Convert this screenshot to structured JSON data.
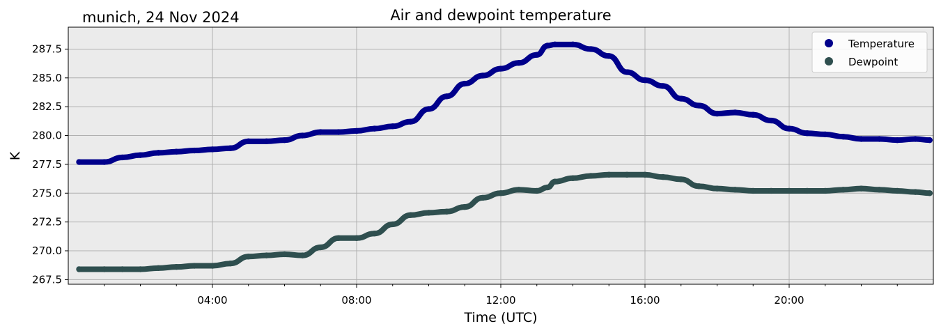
{
  "location_label": "munich, 24 Nov 2024",
  "chart_data": {
    "type": "scatter",
    "title": "Air and dewpoint temperature",
    "xlabel": "Time (UTC)",
    "ylabel": "K",
    "xlim": [
      "00:00",
      "24:00"
    ],
    "ylim": [
      267.1,
      289.4
    ],
    "x_ticks": [
      "04:00",
      "08:00",
      "12:00",
      "16:00",
      "20:00"
    ],
    "y_ticks": [
      "267.5",
      "270.0",
      "272.5",
      "275.0",
      "277.5",
      "280.0",
      "282.5",
      "285.0",
      "287.5"
    ],
    "grid": true,
    "legend_position": "top-right",
    "background_color": "#ebebeb",
    "series": [
      {
        "name": "Temperature",
        "color": "#00008b",
        "raw_color": "#7fa7a0",
        "x_hours": [
          0.3,
          1.0,
          1.5,
          2.0,
          2.5,
          3.0,
          3.5,
          4.0,
          4.5,
          5.0,
          5.5,
          6.0,
          6.5,
          7.0,
          7.5,
          8.0,
          8.5,
          9.0,
          9.5,
          10.0,
          10.5,
          11.0,
          11.5,
          12.0,
          12.5,
          13.0,
          13.3,
          13.5,
          14.0,
          14.5,
          15.0,
          15.5,
          16.0,
          16.5,
          17.0,
          17.5,
          18.0,
          18.5,
          19.0,
          19.5,
          20.0,
          20.5,
          21.0,
          21.5,
          22.0,
          22.5,
          23.0,
          23.5,
          23.9
        ],
        "values": [
          277.7,
          277.7,
          278.1,
          278.3,
          278.5,
          278.6,
          278.7,
          278.8,
          278.9,
          279.5,
          279.5,
          279.6,
          280.0,
          280.3,
          280.3,
          280.4,
          280.6,
          280.8,
          281.2,
          282.3,
          283.4,
          284.5,
          285.2,
          285.8,
          286.3,
          287.0,
          287.8,
          287.9,
          287.9,
          287.5,
          286.9,
          285.5,
          284.8,
          284.3,
          283.2,
          282.6,
          281.9,
          282.0,
          281.8,
          281.3,
          280.6,
          280.2,
          280.1,
          279.9,
          279.7,
          279.7,
          279.6,
          279.7,
          279.6
        ]
      },
      {
        "name": "Dewpoint",
        "color": "#2f4f4f",
        "raw_color": "#1f9fef",
        "x_hours": [
          0.3,
          1.0,
          1.5,
          2.0,
          2.5,
          3.0,
          3.5,
          4.0,
          4.5,
          5.0,
          5.5,
          6.0,
          6.5,
          7.0,
          7.5,
          8.0,
          8.5,
          9.0,
          9.5,
          10.0,
          10.5,
          11.0,
          11.5,
          12.0,
          12.5,
          13.0,
          13.3,
          13.5,
          14.0,
          14.5,
          15.0,
          15.5,
          16.0,
          16.5,
          17.0,
          17.5,
          18.0,
          18.5,
          19.0,
          19.5,
          20.0,
          20.5,
          21.0,
          21.5,
          22.0,
          22.5,
          23.0,
          23.5,
          23.9
        ],
        "values": [
          268.4,
          268.4,
          268.4,
          268.4,
          268.5,
          268.6,
          268.7,
          268.7,
          268.9,
          269.5,
          269.6,
          269.7,
          269.6,
          270.3,
          271.1,
          271.1,
          271.5,
          272.3,
          273.1,
          273.3,
          273.4,
          273.8,
          274.6,
          275.0,
          275.3,
          275.2,
          275.5,
          276.0,
          276.3,
          276.5,
          276.6,
          276.6,
          276.6,
          276.4,
          276.2,
          275.6,
          275.4,
          275.3,
          275.2,
          275.2,
          275.2,
          275.2,
          275.2,
          275.3,
          275.4,
          275.3,
          275.2,
          275.1,
          275.0
        ]
      }
    ]
  }
}
